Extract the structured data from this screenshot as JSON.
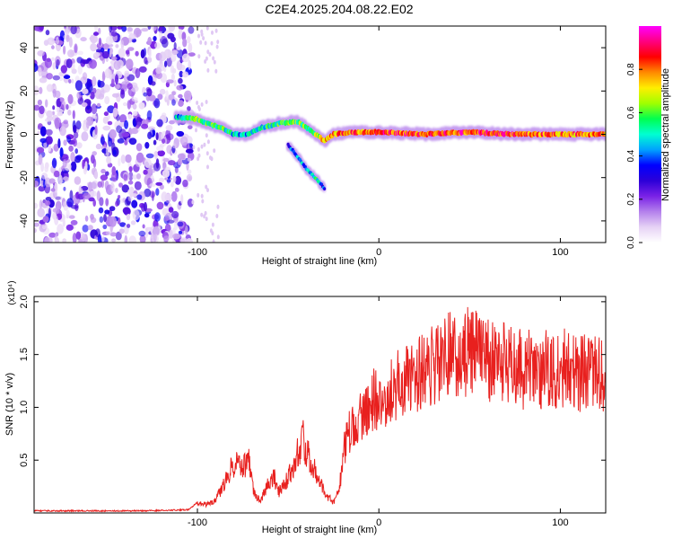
{
  "figure": {
    "title": "C2E4.2025.204.08.22.E02"
  },
  "chart_data": [
    {
      "type": "heatmap",
      "xlabel": "Height of straight line (km)",
      "ylabel": "Frequency (Hz)",
      "xlim": [
        -190,
        125
      ],
      "ylim": [
        -50,
        50
      ],
      "xticks": [
        -100,
        0,
        100
      ],
      "xtick_labels": [
        "-100",
        "0",
        "100"
      ],
      "yticks": [
        -40,
        -20,
        0,
        20,
        40
      ],
      "ytick_labels": [
        "-40",
        "-20",
        "0",
        "20",
        "40"
      ],
      "colorbar": {
        "label": "Normalized spectral amplitude",
        "range": [
          0,
          1
        ],
        "ticks": [
          0.0,
          0.2,
          0.4,
          0.6,
          0.8
        ],
        "tick_labels": [
          "0.0",
          "0.2",
          "0.4",
          "0.6",
          "0.8"
        ],
        "colormap": [
          "#ffffff",
          "#e6d2f5",
          "#b480ec",
          "#7a22e6",
          "#2c00d8",
          "#0000ff",
          "#00a2ff",
          "#00ffd2",
          "#00ff50",
          "#a0ff00",
          "#ffee00",
          "#ff8a00",
          "#ff0000",
          "#ff007f",
          "#ff00ff"
        ]
      },
      "noise_region": {
        "x": [
          -190,
          -103
        ],
        "y": [
          -50,
          50
        ]
      },
      "signal_trace": [
        {
          "x": -112,
          "f": 8,
          "a": 0.45
        },
        {
          "x": -100,
          "f": 7,
          "a": 0.6
        },
        {
          "x": -95,
          "f": 5,
          "a": 0.55
        },
        {
          "x": -87,
          "f": 3,
          "a": 0.55
        },
        {
          "x": -80,
          "f": 0,
          "a": 0.45
        },
        {
          "x": -72,
          "f": 0,
          "a": 0.45
        },
        {
          "x": -65,
          "f": 3,
          "a": 0.5
        },
        {
          "x": -55,
          "f": 5,
          "a": 0.55
        },
        {
          "x": -45,
          "f": 6,
          "a": 0.6
        },
        {
          "x": -38,
          "f": 2,
          "a": 0.6
        },
        {
          "x": -30,
          "f": -3,
          "a": 0.7
        },
        {
          "x": -25,
          "f": 0,
          "a": 0.8
        },
        {
          "x": -15,
          "f": 1,
          "a": 0.8
        },
        {
          "x": 0,
          "f": 1,
          "a": 0.85
        },
        {
          "x": 25,
          "f": 0,
          "a": 0.85
        },
        {
          "x": 50,
          "f": 1,
          "a": 0.85
        },
        {
          "x": 75,
          "f": 0,
          "a": 0.85
        },
        {
          "x": 100,
          "f": 0,
          "a": 0.8
        },
        {
          "x": 125,
          "f": 0,
          "a": 0.8
        }
      ],
      "secondary_trace": [
        {
          "x": -50,
          "f": -5,
          "a": 0.4
        },
        {
          "x": -45,
          "f": -10,
          "a": 0.4
        },
        {
          "x": -40,
          "f": -16,
          "a": 0.45
        },
        {
          "x": -35,
          "f": -20,
          "a": 0.55
        },
        {
          "x": -30,
          "f": -25,
          "a": 0.3
        }
      ]
    },
    {
      "type": "line",
      "xlabel": "Height of straight line (km)",
      "ylabel": "SNR (10 * v/v)",
      "yscale_label": "(x10⁴)",
      "xlim": [
        -190,
        125
      ],
      "ylim": [
        0,
        2.05
      ],
      "xticks": [
        -100,
        0,
        100
      ],
      "xtick_labels": [
        "-100",
        "0",
        "100"
      ],
      "yticks": [
        0.5,
        1.0,
        1.5,
        2.0
      ],
      "ytick_labels": [
        "0.5",
        "1.0",
        "1.5",
        "2.0"
      ],
      "color": "#e8201e",
      "series": [
        {
          "x": [
            -190,
            -160,
            -130,
            -105,
            -100,
            -95,
            -90,
            -86,
            -82,
            -78,
            -75,
            -72,
            -70,
            -68,
            -65,
            -62,
            -58,
            -55,
            -52,
            -48,
            -45,
            -42,
            -40,
            -38,
            -35,
            -32,
            -30,
            -28,
            -25,
            -22,
            -20,
            -18,
            -15,
            -12,
            -10,
            -8,
            -5,
            -2,
            0,
            5,
            10,
            15,
            20,
            25,
            30,
            35,
            40,
            45,
            50,
            55,
            60,
            65,
            70,
            75,
            80,
            85,
            90,
            95,
            100,
            105,
            110,
            115,
            120,
            125
          ],
          "values": [
            0.02,
            0.02,
            0.02,
            0.03,
            0.1,
            0.08,
            0.12,
            0.25,
            0.4,
            0.5,
            0.4,
            0.55,
            0.3,
            0.15,
            0.12,
            0.25,
            0.35,
            0.2,
            0.28,
            0.4,
            0.55,
            0.7,
            0.6,
            0.5,
            0.4,
            0.28,
            0.2,
            0.15,
            0.1,
            0.2,
            0.5,
            0.7,
            0.8,
            0.85,
            0.9,
            0.95,
            1.0,
            1.1,
            1.05,
            1.15,
            1.2,
            1.25,
            1.3,
            1.35,
            1.4,
            1.45,
            1.5,
            1.45,
            1.55,
            1.5,
            1.45,
            1.4,
            1.45,
            1.4,
            1.35,
            1.4,
            1.35,
            1.4,
            1.35,
            1.4,
            1.3,
            1.35,
            1.3,
            1.3
          ]
        }
      ]
    }
  ]
}
